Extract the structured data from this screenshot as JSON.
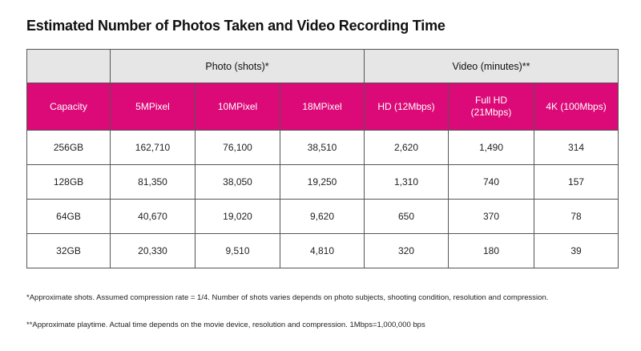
{
  "title": "Estimated Number of Photos Taken and Video Recording Time",
  "groups": {
    "photo": "Photo (shots)*",
    "video": "Video (minutes)**"
  },
  "headers": [
    "Capacity",
    "5MPixel",
    "10MPixel",
    "18MPixel",
    "HD (12Mbps)",
    "Full HD (21Mbps)",
    "4K (100Mbps)"
  ],
  "rows": [
    [
      "256GB",
      "162,710",
      "76,100",
      "38,510",
      "2,620",
      "1,490",
      "314"
    ],
    [
      "128GB",
      "81,350",
      "38,050",
      "19,250",
      "1,310",
      "740",
      "157"
    ],
    [
      "64GB",
      "40,670",
      "19,020",
      "9,620",
      "650",
      "370",
      "78"
    ],
    [
      "32GB",
      "20,330",
      "9,510",
      "4,810",
      "320",
      "180",
      "39"
    ]
  ],
  "notes": [
    "*Approximate shots. Assumed compression rate = 1/4.  Number of shots varies depends on photo subjects, shooting condition, resolution and compression.",
    "**Approximate playtime. Actual time depends on the movie device, resolution and compression.  1Mbps=1,000,000 bps"
  ],
  "colors": {
    "header_bg": "#dc0a78",
    "group_bg": "#e6e6e6",
    "border": "#555555"
  }
}
